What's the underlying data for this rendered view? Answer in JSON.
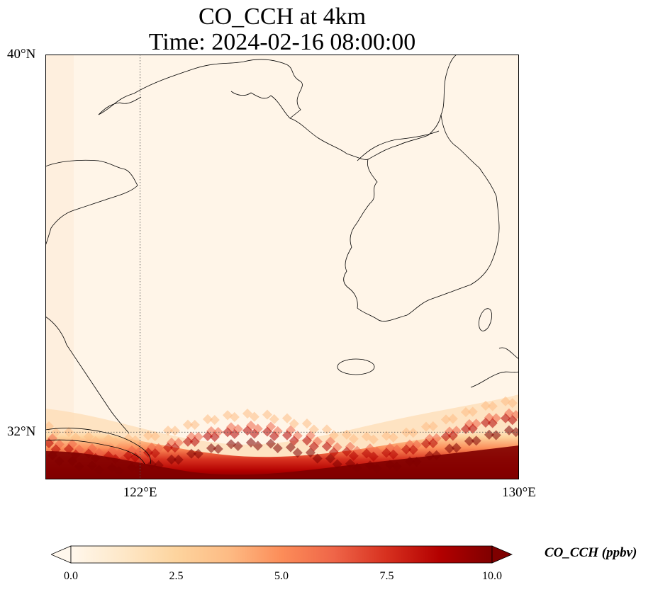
{
  "title": {
    "line1": "CO_CCH at 4km",
    "line2": "Time: 2024-02-16 08:00:00"
  },
  "map": {
    "extent": {
      "lon_min": 120.0,
      "lon_max": 130.0,
      "lat_min": 31.0,
      "lat_max": 40.0
    },
    "lat_labels": [
      {
        "text": "40°N",
        "value": 40
      },
      {
        "text": "32°N",
        "value": 32
      }
    ],
    "lon_labels": [
      {
        "text": "122°E",
        "value": 122
      },
      {
        "text": "130°E",
        "value": 130
      }
    ],
    "gridlines": {
      "lon": [
        122
      ],
      "lat": [
        32
      ],
      "style": "dotted"
    },
    "background_color": "#fff5e8",
    "coastline_color": "#000000"
  },
  "colorbar": {
    "label": "CO_CCH (ppbv)",
    "ticks": [
      "0.0",
      "2.5",
      "5.0",
      "7.5",
      "10.0"
    ],
    "tick_values": [
      0,
      2.5,
      5,
      7.5,
      10
    ],
    "min": 0,
    "max": 10,
    "colormap": "OrRd",
    "extend": "both",
    "colors": [
      "#fff7ec",
      "#fee8c8",
      "#fdd49e",
      "#fdbb84",
      "#fc8d59",
      "#ef6548",
      "#d7301f",
      "#b30000",
      "#7f0000"
    ]
  }
}
